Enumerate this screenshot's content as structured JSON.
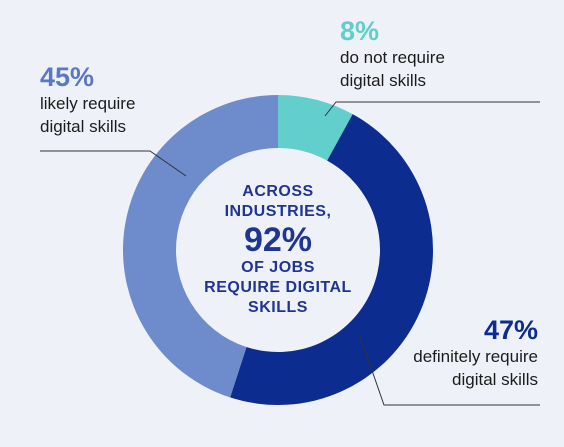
{
  "chart_data": {
    "type": "pie",
    "variant": "donut",
    "slices": [
      {
        "value": 8,
        "label_pct": "8%",
        "label_line1": "do not require",
        "label_line2": "digital skills",
        "color": "#62cfcc"
      },
      {
        "value": 47,
        "label_pct": "47%",
        "label_line1": "definitely require",
        "label_line2": "digital skills",
        "color": "#0d2c8f"
      },
      {
        "value": 45,
        "label_pct": "45%",
        "label_line1": "likely require",
        "label_line2": "digital skills",
        "color": "#6e8bcb"
      }
    ],
    "center": {
      "line1": "ACROSS",
      "line2": "INDUSTRIES,",
      "value": "92%",
      "line3": "OF JOBS",
      "line4": "REQUIRE DIGITAL",
      "line5": "SKILLS"
    }
  },
  "colors": {
    "background": "#eef2f8",
    "center_text": "#1f3591",
    "pct_teal": "#5fcfcb",
    "pct_blue_light": "#5b78c4",
    "pct_blue_dark": "#0d2c8f",
    "leader_line": "#333333"
  }
}
